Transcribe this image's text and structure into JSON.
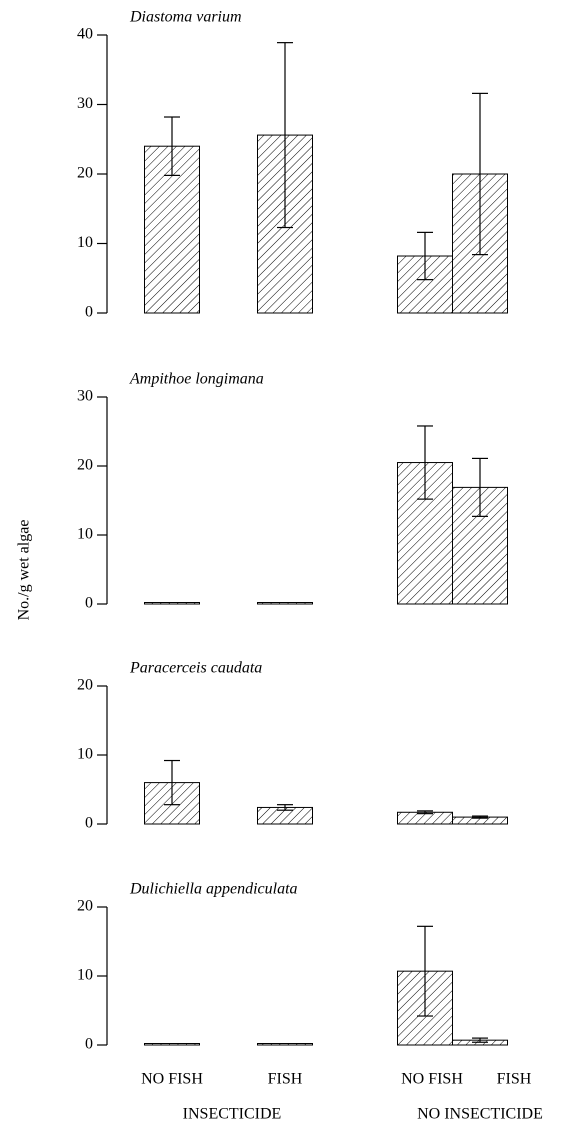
{
  "y_label": "No./g wet algae",
  "categories": [
    "NO FISH",
    "FISH",
    "NO FISH",
    "FISH"
  ],
  "groups": [
    "INSECTICIDE",
    "NO INSECTICIDE"
  ],
  "chart_data": [
    {
      "type": "bar",
      "title": "Diastoma varium",
      "values": [
        24,
        25.6,
        8.2,
        20
      ],
      "errors": [
        4.2,
        13.3,
        3.4,
        11.6
      ],
      "color": "#000000",
      "ylim": [
        0,
        40
      ],
      "yticks": [
        0,
        10,
        20,
        30,
        40
      ]
    },
    {
      "type": "bar",
      "title": "Ampithoe longimana",
      "values": [
        0.2,
        0.2,
        20.5,
        16.9
      ],
      "errors": [
        0,
        0,
        5.3,
        4.2
      ],
      "color": "#000000",
      "ylim": [
        0,
        30
      ],
      "yticks": [
        0,
        10,
        20,
        30
      ]
    },
    {
      "type": "bar",
      "title": "Paracerceis caudata",
      "values": [
        6,
        2.4,
        1.7,
        1
      ],
      "errors": [
        3.2,
        0.4,
        0.2,
        0.15
      ],
      "color": "#000000",
      "ylim": [
        0,
        20
      ],
      "yticks": [
        0,
        10,
        20
      ]
    },
    {
      "type": "bar",
      "title": "Dulichiella appendiculata",
      "values": [
        0.1,
        0.1,
        10.7,
        0.7
      ],
      "errors": [
        0,
        0,
        6.5,
        0.3
      ],
      "color": "#000000",
      "ylim": [
        0,
        20
      ],
      "yticks": [
        0,
        10,
        20
      ]
    }
  ]
}
